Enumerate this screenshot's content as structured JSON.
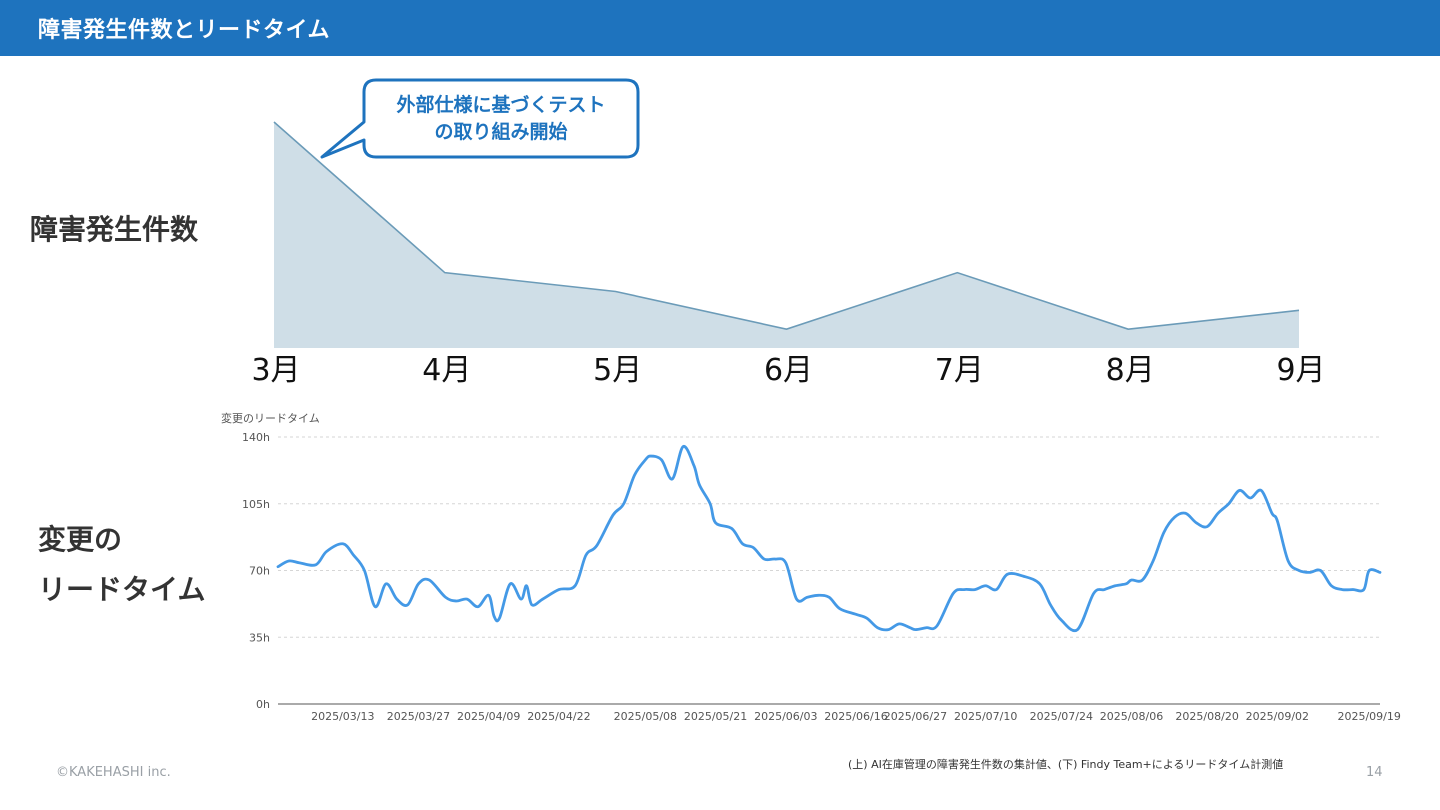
{
  "header": {
    "title": "障害発生件数とリードタイム"
  },
  "labels": {
    "incidents": "障害発生件数",
    "leadtime_line1": "変更の",
    "leadtime_line2": "リードタイム"
  },
  "callout": {
    "line1": "外部仕様に基づくテスト",
    "line2": "の取り組み開始"
  },
  "footer": {
    "copyright": "©KAKEHASHI inc.",
    "note": "(上) AI在庫管理の障害発生件数の集計値、(下) Findy Team+によるリードタイム計測値",
    "page": "14"
  },
  "colors": {
    "header": "#1e73be",
    "area_fill": "#cfdee7",
    "area_line": "#6b9bb8",
    "lead_line": "#4499e6",
    "callout_border": "#1e73be"
  },
  "chart_data": [
    {
      "type": "area",
      "categories": [
        "3月",
        "4月",
        "5月",
        "6月",
        "7月",
        "8月",
        "9月"
      ],
      "values": [
        12,
        4,
        3,
        1,
        4,
        1,
        2
      ],
      "ylim": [
        0,
        12
      ],
      "grid": false
    },
    {
      "type": "line",
      "title": "変更のリードタイム",
      "y_unit": "h",
      "yticks": [
        "0h",
        "35h",
        "70h",
        "105h",
        "140h"
      ],
      "ylim": [
        0,
        140
      ],
      "grid": true,
      "x_tick_labels": [
        "2025/03/13",
        "2025/03/27",
        "2025/04/09",
        "2025/04/22",
        "2025/05/08",
        "2025/05/21",
        "2025/06/03",
        "2025/06/16",
        "2025/06/27",
        "2025/07/10",
        "2025/07/24",
        "2025/08/06",
        "2025/08/20",
        "2025/09/02",
        "2025/09/19"
      ],
      "x": [
        "2025/03/01",
        "2025/03/03",
        "2025/03/05",
        "2025/03/08",
        "2025/03/10",
        "2025/03/13",
        "2025/03/15",
        "2025/03/17",
        "2025/03/19",
        "2025/03/21",
        "2025/03/23",
        "2025/03/25",
        "2025/03/27",
        "2025/03/29",
        "2025/04/01",
        "2025/04/03",
        "2025/04/05",
        "2025/04/07",
        "2025/04/09",
        "2025/04/10",
        "2025/04/11",
        "2025/04/13",
        "2025/04/15",
        "2025/04/16",
        "2025/04/17",
        "2025/04/19",
        "2025/04/22",
        "2025/04/25",
        "2025/04/27",
        "2025/04/29",
        "2025/05/02",
        "2025/05/04",
        "2025/05/06",
        "2025/05/08",
        "2025/05/09",
        "2025/05/11",
        "2025/05/13",
        "2025/05/15",
        "2025/05/17",
        "2025/05/18",
        "2025/05/20",
        "2025/05/21",
        "2025/05/24",
        "2025/05/26",
        "2025/05/28",
        "2025/05/30",
        "2025/06/01",
        "2025/06/03",
        "2025/06/05",
        "2025/06/07",
        "2025/06/09",
        "2025/06/11",
        "2025/06/13",
        "2025/06/16",
        "2025/06/18",
        "2025/06/20",
        "2025/06/22",
        "2025/06/24",
        "2025/06/26",
        "2025/06/27",
        "2025/06/29",
        "2025/07/01",
        "2025/07/04",
        "2025/07/06",
        "2025/07/08",
        "2025/07/10",
        "2025/07/12",
        "2025/07/14",
        "2025/07/17",
        "2025/07/20",
        "2025/07/22",
        "2025/07/24",
        "2025/07/27",
        "2025/07/30",
        "2025/08/01",
        "2025/08/03",
        "2025/08/05",
        "2025/08/06",
        "2025/08/08",
        "2025/08/10",
        "2025/08/12",
        "2025/08/14",
        "2025/08/16",
        "2025/08/18",
        "2025/08/20",
        "2025/08/22",
        "2025/08/24",
        "2025/08/26",
        "2025/08/28",
        "2025/08/30",
        "2025/09/01",
        "2025/09/02",
        "2025/09/04",
        "2025/09/06",
        "2025/09/08",
        "2025/09/10",
        "2025/09/12",
        "2025/09/14",
        "2025/09/16",
        "2025/09/18",
        "2025/09/19",
        "2025/09/21"
      ],
      "series": [
        {
          "values": [
            72,
            75,
            74,
            73,
            80,
            84,
            78,
            70,
            51,
            63,
            55,
            52,
            63,
            65,
            56,
            54,
            55,
            51,
            57,
            46,
            45,
            63,
            55,
            62,
            52,
            55,
            60,
            62,
            78,
            83,
            99,
            105,
            120,
            128,
            130,
            128,
            118,
            135,
            125,
            115,
            105,
            95,
            92,
            84,
            82,
            76,
            76,
            74,
            55,
            56,
            57,
            56,
            50,
            47,
            45,
            40,
            39,
            42,
            40,
            39,
            40,
            41,
            58,
            60,
            60,
            62,
            60,
            68,
            67,
            63,
            52,
            44,
            39,
            58,
            60,
            62,
            63,
            65,
            65,
            75,
            90,
            98,
            100,
            95,
            93,
            100,
            105,
            112,
            108,
            112,
            100,
            96,
            75,
            70,
            69,
            70,
            62,
            60,
            60,
            60,
            70,
            69
          ]
        }
      ]
    }
  ]
}
